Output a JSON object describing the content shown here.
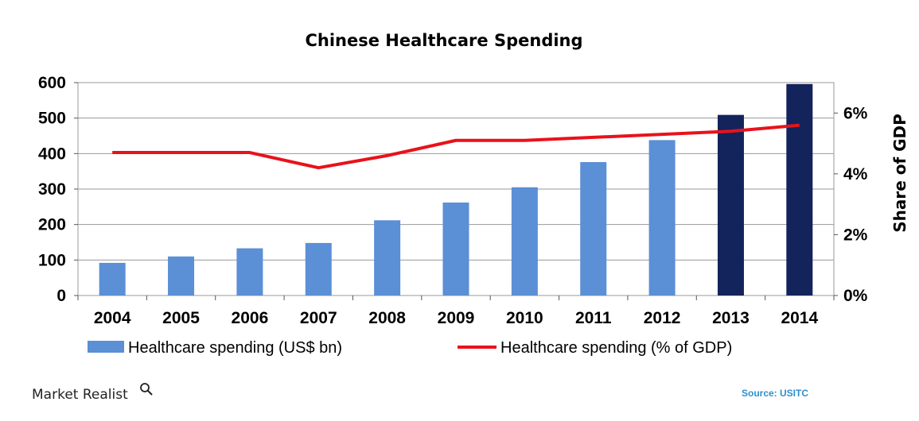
{
  "brand": {
    "name": "Market Realist",
    "source": "Source: USITC"
  },
  "colors": {
    "bar_light": "#5b8fd6",
    "bar_dark": "#13235b",
    "line": "#e8121b",
    "source_text": "#2f8fce",
    "grid": "#9a9a9a"
  },
  "chart_data": {
    "type": "bar",
    "title": "Chinese Healthcare Spending",
    "categories": [
      "2004",
      "2005",
      "2006",
      "2007",
      "2008",
      "2009",
      "2010",
      "2011",
      "2012",
      "2013",
      "2014"
    ],
    "series": [
      {
        "name": "Healthcare spending (US$ bn)",
        "kind": "bar",
        "axis": "left",
        "values": [
          92,
          110,
          133,
          148,
          212,
          262,
          305,
          376,
          438,
          509,
          596
        ],
        "highlight": [
          false,
          false,
          false,
          false,
          false,
          false,
          false,
          false,
          false,
          true,
          true
        ]
      },
      {
        "name": "Healthcare spending (% of GDP)",
        "kind": "line",
        "axis": "right",
        "values": [
          4.7,
          4.7,
          4.7,
          4.2,
          4.6,
          5.1,
          5.1,
          5.2,
          5.3,
          5.4,
          5.6
        ]
      }
    ],
    "y_left": {
      "min": 0,
      "max": 600,
      "ticks": [
        "0",
        "100",
        "200",
        "300",
        "400",
        "500",
        "600"
      ],
      "tick_values": [
        0,
        100,
        200,
        300,
        400,
        500,
        600
      ]
    },
    "y_right": {
      "min": 0,
      "max": 7,
      "label": "Share of GDP",
      "ticks": [
        "0%",
        "2%",
        "4%",
        "6%"
      ],
      "tick_values": [
        0,
        2,
        4,
        6
      ]
    },
    "xlabel": "",
    "ylabel": "",
    "grid": true,
    "legend": "bottom"
  }
}
